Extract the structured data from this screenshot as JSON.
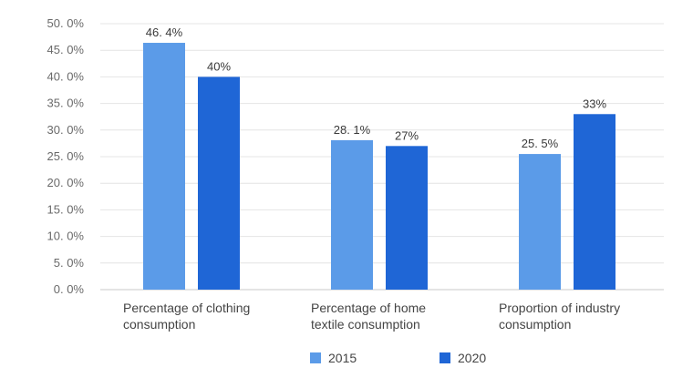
{
  "chart_data": {
    "type": "bar",
    "categories": [
      [
        "Percentage of clothing",
        "consumption"
      ],
      [
        "Percentage of home",
        "textile consumption"
      ],
      [
        "Proportion of industry",
        "consumption"
      ]
    ],
    "series": [
      {
        "name": "2015",
        "color": "#5b9be8",
        "values": [
          46.4,
          28.1,
          25.5
        ],
        "labels": [
          "46. 4%",
          "28. 1%",
          "25. 5%"
        ]
      },
      {
        "name": "2020",
        "color": "#1f66d6",
        "values": [
          40,
          27,
          33
        ],
        "labels": [
          "40%",
          "27%",
          "33%"
        ]
      }
    ],
    "y_ticks": [
      "0. 0%",
      "5. 0%",
      "10. 0%",
      "15. 0%",
      "20. 0%",
      "25. 0%",
      "30. 0%",
      "35. 0%",
      "40. 0%",
      "45. 0%",
      "50. 0%"
    ],
    "ylim": [
      0,
      50
    ],
    "grid": true,
    "legend_position": "bottom"
  }
}
